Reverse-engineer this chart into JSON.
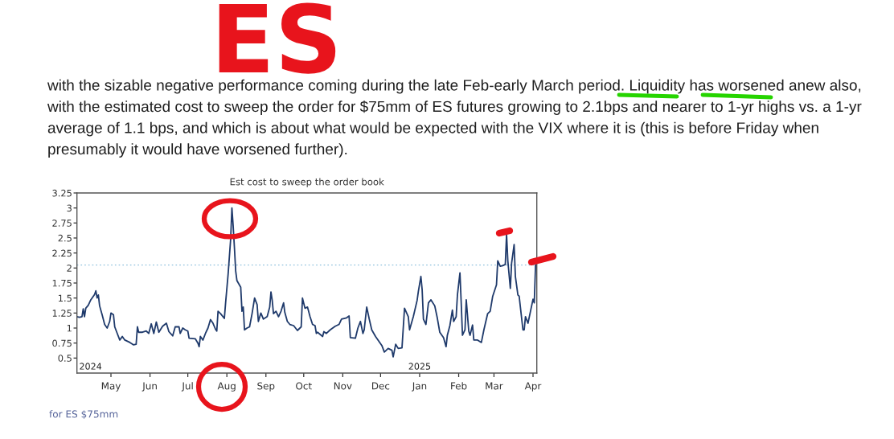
{
  "chart_data": {
    "type": "line",
    "title": "Est cost to sweep the order book",
    "annotations": [
      "ES",
      "with the sizable negative performance coming during the late Feb-early March period. Liquidity has worsened anew also, with the estimated cost to sweep the order for $75mm of ES futures growing to 2.1bps and nearer to 1-yr highs vs. a 1-yr average of 1.1 bps, and which is about what would be expected with the VIX where it is (this is before Friday when presumably it would have worsened further).",
      "2024",
      "2025",
      "for ES $75mm"
    ],
    "series": [
      {
        "color": "#1f3a6b",
        "x": [
          "2024-04-04",
          "2024-04-06",
          "2024-04-08",
          "2024-04-09",
          "2024-04-10",
          "2024-04-11",
          "2024-04-13",
          "2024-04-15",
          "2024-04-17",
          "2024-04-18",
          "2024-04-19",
          "2024-04-20",
          "2024-04-21",
          "2024-04-22",
          "2024-04-24",
          "2024-04-26",
          "2024-04-28",
          "2024-04-30",
          "2024-05-01",
          "2024-05-03",
          "2024-05-04",
          "2024-05-06",
          "2024-05-08",
          "2024-05-10",
          "2024-05-12",
          "2024-05-16",
          "2024-05-19",
          "2024-05-21",
          "2024-05-22",
          "2024-05-23",
          "2024-05-26",
          "2024-05-29",
          "2024-05-31",
          "2024-06-02",
          "2024-06-04",
          "2024-06-06",
          "2024-06-08",
          "2024-06-11",
          "2024-06-14",
          "2024-06-16",
          "2024-06-19",
          "2024-06-21",
          "2024-06-24",
          "2024-06-25",
          "2024-06-27",
          "2024-06-29",
          "2024-07-01",
          "2024-07-02",
          "2024-07-07",
          "2024-07-09",
          "2024-07-10",
          "2024-07-11",
          "2024-07-13",
          "2024-07-15",
          "2024-07-17",
          "2024-07-19",
          "2024-07-21",
          "2024-07-23",
          "2024-07-24",
          "2024-07-25",
          "2024-07-27",
          "2024-07-30",
          "2024-07-31",
          "2024-08-02",
          "2024-08-04",
          "2024-08-05",
          "2024-08-06",
          "2024-08-07",
          "2024-08-08",
          "2024-08-09",
          "2024-08-12",
          "2024-08-13",
          "2024-08-14",
          "2024-08-15",
          "2024-08-17",
          "2024-08-19",
          "2024-08-21",
          "2024-08-23",
          "2024-08-25",
          "2024-08-26",
          "2024-08-28",
          "2024-08-30",
          "2024-09-02",
          "2024-09-04",
          "2024-09-05",
          "2024-09-06",
          "2024-09-07",
          "2024-09-09",
          "2024-09-11",
          "2024-09-13",
          "2024-09-15",
          "2024-09-16",
          "2024-09-18",
          "2024-09-20",
          "2024-09-23",
          "2024-09-26",
          "2024-09-29",
          "2024-09-30",
          "2024-10-02",
          "2024-10-04",
          "2024-10-06",
          "2024-10-08",
          "2024-10-10",
          "2024-10-11",
          "2024-10-12",
          "2024-10-16",
          "2024-10-17",
          "2024-10-19",
          "2024-10-22",
          "2024-10-26",
          "2024-10-29",
          "2024-10-31",
          "2024-11-04",
          "2024-11-06",
          "2024-11-07",
          "2024-11-11",
          "2024-11-13",
          "2024-11-15",
          "2024-11-17",
          "2024-11-18",
          "2024-11-20",
          "2024-11-22",
          "2024-11-24",
          "2024-11-27",
          "2024-11-30",
          "2024-12-02",
          "2024-12-04",
          "2024-12-07",
          "2024-12-10",
          "2024-12-11",
          "2024-12-13",
          "2024-12-15",
          "2024-12-18",
          "2024-12-20",
          "2024-12-23",
          "2024-12-24",
          "2024-12-27",
          "2024-12-30",
          "2024-12-31",
          "2025-01-02",
          "2025-01-03",
          "2025-01-04",
          "2025-01-06",
          "2025-01-08",
          "2025-01-10",
          "2025-01-13",
          "2025-01-15",
          "2025-01-17",
          "2025-01-20",
          "2025-01-22",
          "2025-01-23",
          "2025-01-25",
          "2025-01-27",
          "2025-01-28",
          "2025-01-30",
          "2025-01-31",
          "2025-02-02",
          "2025-02-03",
          "2025-02-04",
          "2025-02-06",
          "2025-02-07",
          "2025-02-09",
          "2025-02-10",
          "2025-02-12",
          "2025-02-13",
          "2025-02-16",
          "2025-02-19",
          "2025-02-21",
          "2025-02-24",
          "2025-02-26",
          "2025-02-28",
          "2025-03-03",
          "2025-03-04",
          "2025-03-06",
          "2025-03-08",
          "2025-03-10",
          "2025-03-11",
          "2025-03-12",
          "2025-03-14",
          "2025-03-15",
          "2025-03-17",
          "2025-03-18",
          "2025-03-20",
          "2025-03-21",
          "2025-03-24",
          "2025-03-25",
          "2025-03-26",
          "2025-03-28",
          "2025-03-30",
          "2025-04-01",
          "2025-04-02",
          "2025-04-03"
        ],
        "values": [
          1.19,
          1.18,
          1.19,
          1.32,
          1.19,
          1.33,
          1.38,
          1.47,
          1.53,
          1.56,
          1.62,
          1.5,
          1.55,
          1.37,
          1.22,
          1.06,
          1.0,
          1.11,
          1.25,
          1.22,
          1.02,
          0.91,
          0.8,
          0.86,
          0.8,
          0.76,
          0.72,
          0.73,
          1.02,
          0.93,
          0.93,
          0.95,
          0.91,
          1.07,
          0.91,
          1.1,
          0.93,
          1.03,
          1.08,
          0.94,
          0.87,
          1.02,
          1.02,
          0.91,
          1.0,
          0.97,
          0.95,
          0.83,
          0.82,
          0.75,
          0.69,
          0.86,
          0.8,
          0.91,
          1.0,
          1.14,
          1.08,
          0.98,
          0.95,
          1.28,
          1.24,
          1.16,
          1.42,
          1.9,
          2.48,
          3.0,
          2.7,
          2.34,
          1.95,
          1.79,
          1.68,
          1.28,
          1.35,
          0.97,
          1.0,
          1.02,
          1.24,
          1.5,
          1.39,
          1.11,
          1.25,
          1.15,
          1.19,
          1.35,
          1.6,
          1.46,
          1.24,
          1.28,
          1.19,
          1.28,
          1.42,
          1.26,
          1.11,
          1.06,
          1.04,
          0.96,
          1.02,
          1.5,
          1.33,
          1.35,
          1.19,
          1.06,
          1.04,
          0.91,
          0.93,
          0.86,
          0.94,
          0.91,
          0.97,
          1.03,
          1.06,
          1.15,
          1.17,
          1.2,
          0.84,
          0.83,
          1.0,
          1.11,
          0.91,
          0.97,
          1.35,
          1.15,
          0.97,
          0.86,
          0.77,
          0.71,
          0.6,
          0.66,
          0.63,
          0.52,
          0.73,
          0.66,
          0.67,
          1.33,
          1.19,
          0.97,
          1.19,
          1.46,
          1.61,
          1.86,
          1.64,
          1.15,
          1.06,
          1.42,
          1.47,
          1.37,
          1.17,
          0.93,
          0.84,
          0.69,
          0.88,
          1.04,
          1.3,
          1.11,
          1.19,
          1.55,
          1.92,
          1.42,
          0.88,
          0.97,
          1.47,
          0.95,
          0.88,
          1.05,
          0.8,
          0.8,
          0.76,
          0.97,
          1.24,
          1.28,
          1.53,
          1.72,
          2.12,
          2.03,
          2.04,
          2.06,
          2.56,
          2.12,
          1.66,
          2.08,
          2.39,
          1.86,
          1.55,
          1.53,
          0.97,
          0.97,
          1.19,
          1.08,
          1.28,
          1.48,
          1.42,
          2.05
        ]
      }
    ],
    "xlim": [
      "2024-04-04",
      "2025-04-04"
    ],
    "xticks": [
      {
        "value": "2024-05-01",
        "label": "May"
      },
      {
        "value": "2024-06-01",
        "label": "Jun"
      },
      {
        "value": "2024-07-01",
        "label": "Jul"
      },
      {
        "value": "2024-08-01",
        "label": "Aug"
      },
      {
        "value": "2024-09-01",
        "label": "Sep"
      },
      {
        "value": "2024-10-01",
        "label": "Oct"
      },
      {
        "value": "2024-11-01",
        "label": "Nov"
      },
      {
        "value": "2024-12-01",
        "label": "Dec"
      },
      {
        "value": "2025-01-01",
        "label": "Jan"
      },
      {
        "value": "2025-02-01",
        "label": "Feb"
      },
      {
        "value": "2025-03-01",
        "label": "Mar"
      },
      {
        "value": "2025-04-01",
        "label": "Apr"
      }
    ],
    "ylim": [
      0.25,
      3.25
    ],
    "yticks": [
      0.5,
      0.75,
      1,
      1.25,
      1.5,
      1.75,
      2,
      2.25,
      2.5,
      2.75,
      3,
      3.25
    ],
    "ref_lines": [
      {
        "axis": "y",
        "value": 2.05,
        "color": "#8fc1dd",
        "line_style": "dotted"
      }
    ],
    "grid": false
  }
}
